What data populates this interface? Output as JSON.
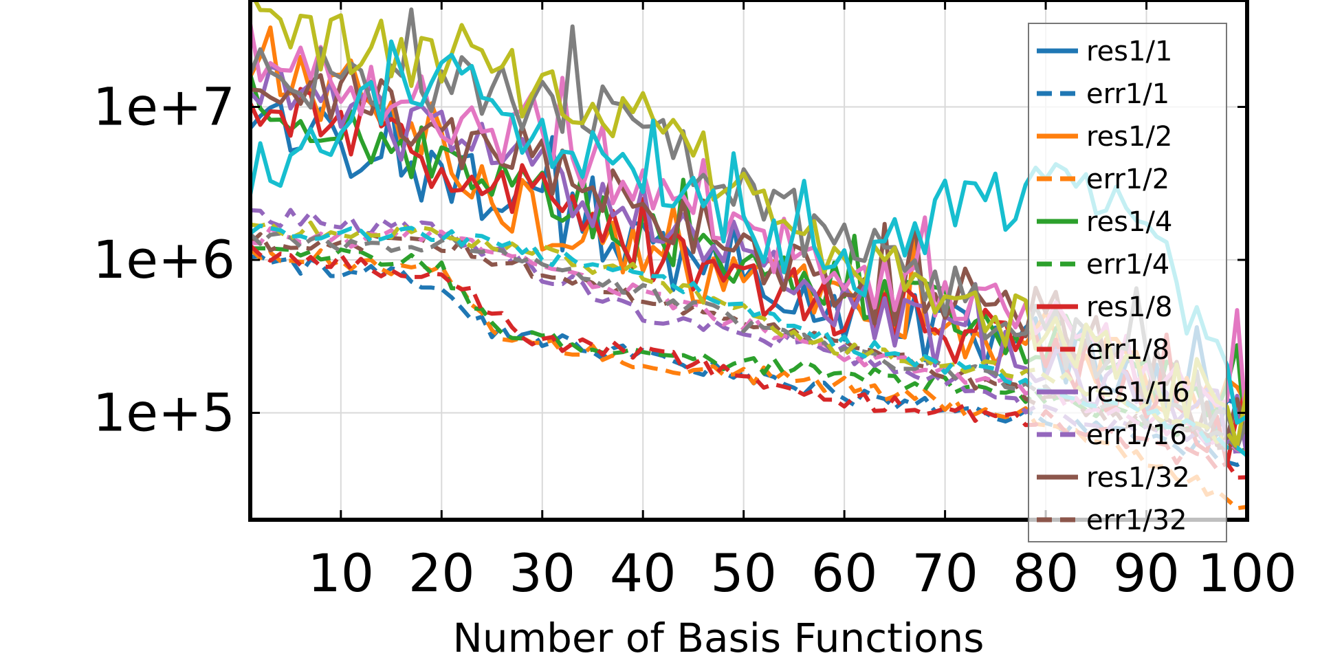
{
  "chart_data": {
    "type": "line",
    "title": "",
    "xlabel": "Number of Basis Functions",
    "ylabel": "",
    "xlim": [
      1,
      100
    ],
    "ylim": [
      20000,
      50000000
    ],
    "y_scale": "log",
    "grid": true,
    "legend_position": "top-right",
    "x_ticks": [
      10,
      20,
      30,
      40,
      50,
      60,
      70,
      80,
      90,
      100
    ],
    "x_tick_labels": [
      "10",
      "20",
      "30",
      "40",
      "50",
      "60",
      "70",
      "80",
      "90",
      "100"
    ],
    "y_ticks": [
      100000,
      1000000,
      10000000
    ],
    "y_tick_labels": [
      "1e+5",
      "1e+6",
      "1e+7"
    ],
    "colors": {
      "c1": "#1f77b4",
      "c2": "#ff7f0e",
      "c4": "#2ca02c",
      "c8": "#d62728",
      "c16": "#9467bd",
      "c32": "#8c564b",
      "c64": "#e377c2",
      "c128": "#7f7f7f",
      "c256": "#bcbd22",
      "c512": "#17becf"
    },
    "anchors": {
      "res": {
        "1": [
          [
            1,
            9000000
          ],
          [
            20,
            3500000
          ],
          [
            40,
            1100000
          ],
          [
            60,
            450000
          ],
          [
            80,
            250000
          ],
          [
            100,
            80000
          ]
        ],
        "2": [
          [
            1,
            25000000
          ],
          [
            20,
            4000000
          ],
          [
            40,
            900000
          ],
          [
            60,
            500000
          ],
          [
            80,
            280000
          ],
          [
            100,
            100000
          ]
        ],
        "4": [
          [
            1,
            12000000
          ],
          [
            20,
            4000000
          ],
          [
            40,
            1300000
          ],
          [
            60,
            600000
          ],
          [
            80,
            300000
          ],
          [
            100,
            80000
          ]
        ],
        "8": [
          [
            1,
            10000000
          ],
          [
            20,
            4500000
          ],
          [
            40,
            1200000
          ],
          [
            60,
            500000
          ],
          [
            80,
            250000
          ],
          [
            100,
            60000
          ]
        ],
        "16": [
          [
            1,
            15000000
          ],
          [
            20,
            6000000
          ],
          [
            40,
            2000000
          ],
          [
            60,
            500000
          ],
          [
            80,
            200000
          ],
          [
            100,
            80000
          ]
        ],
        "32": [
          [
            1,
            20000000
          ],
          [
            20,
            7000000
          ],
          [
            40,
            2500000
          ],
          [
            60,
            600000
          ],
          [
            80,
            500000
          ],
          [
            100,
            70000
          ]
        ],
        "64": [
          [
            1,
            25000000
          ],
          [
            20,
            10000000
          ],
          [
            40,
            2500000
          ],
          [
            60,
            900000
          ],
          [
            80,
            400000
          ],
          [
            100,
            120000
          ]
        ],
        "128": [
          [
            1,
            15000000
          ],
          [
            20,
            15000000
          ],
          [
            40,
            8000000
          ],
          [
            60,
            1200000
          ],
          [
            80,
            350000
          ],
          [
            100,
            90000
          ]
        ],
        "256": [
          [
            1,
            30000000
          ],
          [
            20,
            20000000
          ],
          [
            40,
            8000000
          ],
          [
            60,
            1000000
          ],
          [
            80,
            300000
          ],
          [
            100,
            90000
          ]
        ],
        "512": [
          [
            1,
            4000000
          ],
          [
            20,
            15000000
          ],
          [
            40,
            3000000
          ],
          [
            60,
            700000
          ],
          [
            70,
            2000000
          ],
          [
            80,
            3000000
          ],
          [
            90,
            1500000
          ],
          [
            100,
            100000
          ]
        ]
      },
      "err": {
        "1": [
          [
            1,
            1000000
          ],
          [
            20,
            700000
          ],
          [
            25,
            350000
          ],
          [
            40,
            230000
          ],
          [
            60,
            130000
          ],
          [
            80,
            90000
          ],
          [
            100,
            50000
          ]
        ],
        "2": [
          [
            1,
            1200000
          ],
          [
            20,
            800000
          ],
          [
            25,
            350000
          ],
          [
            40,
            220000
          ],
          [
            60,
            150000
          ],
          [
            80,
            90000
          ],
          [
            100,
            25000
          ]
        ],
        "4": [
          [
            1,
            1300000
          ],
          [
            20,
            900000
          ],
          [
            25,
            350000
          ],
          [
            40,
            250000
          ],
          [
            60,
            180000
          ],
          [
            80,
            130000
          ],
          [
            100,
            60000
          ]
        ],
        "8": [
          [
            1,
            1100000
          ],
          [
            20,
            800000
          ],
          [
            30,
            280000
          ],
          [
            40,
            250000
          ],
          [
            60,
            120000
          ],
          [
            80,
            90000
          ],
          [
            100,
            40000
          ]
        ],
        "16": [
          [
            1,
            2000000
          ],
          [
            20,
            1500000
          ],
          [
            40,
            450000
          ],
          [
            60,
            250000
          ],
          [
            80,
            100000
          ],
          [
            100,
            60000
          ]
        ],
        "32": [
          [
            1,
            1300000
          ],
          [
            20,
            1300000
          ],
          [
            40,
            550000
          ],
          [
            60,
            300000
          ],
          [
            80,
            120000
          ],
          [
            100,
            60000
          ]
        ],
        "64": [
          [
            1,
            1400000
          ],
          [
            20,
            1400000
          ],
          [
            40,
            600000
          ],
          [
            60,
            250000
          ],
          [
            80,
            130000
          ],
          [
            100,
            60000
          ]
        ],
        "128": [
          [
            1,
            1300000
          ],
          [
            20,
            1300000
          ],
          [
            40,
            600000
          ],
          [
            60,
            250000
          ],
          [
            80,
            150000
          ],
          [
            100,
            60000
          ]
        ],
        "256": [
          [
            1,
            1600000
          ],
          [
            20,
            1500000
          ],
          [
            40,
            800000
          ],
          [
            60,
            250000
          ],
          [
            80,
            180000
          ],
          [
            100,
            60000
          ]
        ],
        "512": [
          [
            1,
            1500000
          ],
          [
            20,
            1500000
          ],
          [
            40,
            800000
          ],
          [
            60,
            280000
          ],
          [
            80,
            150000
          ],
          [
            100,
            60000
          ]
        ]
      }
    },
    "series": [
      {
        "name": "res1/1",
        "color": "#1f77b4",
        "dash": false,
        "key": "1",
        "kind": "res",
        "in_legend": true
      },
      {
        "name": "err1/1",
        "color": "#1f77b4",
        "dash": true,
        "key": "1",
        "kind": "err",
        "in_legend": true
      },
      {
        "name": "res1/2",
        "color": "#ff7f0e",
        "dash": false,
        "key": "2",
        "kind": "res",
        "in_legend": true
      },
      {
        "name": "err1/2",
        "color": "#ff7f0e",
        "dash": true,
        "key": "2",
        "kind": "err",
        "in_legend": true
      },
      {
        "name": "res1/4",
        "color": "#2ca02c",
        "dash": false,
        "key": "4",
        "kind": "res",
        "in_legend": true
      },
      {
        "name": "err1/4",
        "color": "#2ca02c",
        "dash": true,
        "key": "4",
        "kind": "err",
        "in_legend": true
      },
      {
        "name": "res1/8",
        "color": "#d62728",
        "dash": false,
        "key": "8",
        "kind": "res",
        "in_legend": true
      },
      {
        "name": "err1/8",
        "color": "#d62728",
        "dash": true,
        "key": "8",
        "kind": "err",
        "in_legend": true
      },
      {
        "name": "res1/16",
        "color": "#9467bd",
        "dash": false,
        "key": "16",
        "kind": "res",
        "in_legend": true
      },
      {
        "name": "err1/16",
        "color": "#9467bd",
        "dash": true,
        "key": "16",
        "kind": "err",
        "in_legend": true
      },
      {
        "name": "res1/32",
        "color": "#8c564b",
        "dash": false,
        "key": "32",
        "kind": "res",
        "in_legend": true
      },
      {
        "name": "err1/32",
        "color": "#8c564b",
        "dash": true,
        "key": "32",
        "kind": "err",
        "in_legend": true
      },
      {
        "name": "",
        "color": "#e377c2",
        "dash": false,
        "key": "64",
        "kind": "res",
        "in_legend": false
      },
      {
        "name": "",
        "color": "#e377c2",
        "dash": true,
        "key": "64",
        "kind": "err",
        "in_legend": false
      },
      {
        "name": "",
        "color": "#7f7f7f",
        "dash": false,
        "key": "128",
        "kind": "res",
        "in_legend": false
      },
      {
        "name": "",
        "color": "#7f7f7f",
        "dash": true,
        "key": "128",
        "kind": "err",
        "in_legend": false
      },
      {
        "name": "",
        "color": "#bcbd22",
        "dash": false,
        "key": "256",
        "kind": "res",
        "in_legend": false
      },
      {
        "name": "",
        "color": "#bcbd22",
        "dash": true,
        "key": "256",
        "kind": "err",
        "in_legend": false
      },
      {
        "name": "",
        "color": "#17becf",
        "dash": false,
        "key": "512",
        "kind": "res",
        "in_legend": false
      },
      {
        "name": "",
        "color": "#17becf",
        "dash": true,
        "key": "512",
        "kind": "err",
        "in_legend": false
      }
    ]
  }
}
